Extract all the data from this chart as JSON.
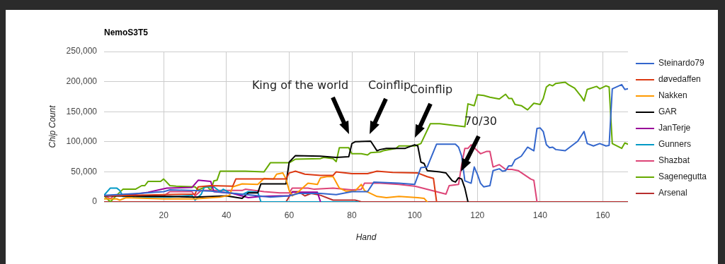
{
  "chart_data": {
    "type": "line",
    "title": "NemoS3T5",
    "xlabel": "Hand",
    "ylabel": "Chip Count",
    "xlim": [
      1,
      168
    ],
    "xticks": [
      20,
      40,
      60,
      80,
      100,
      120,
      140,
      160
    ],
    "ylim": [
      0,
      250000
    ],
    "yticks": [
      {
        "value": 0,
        "label": "0"
      },
      {
        "value": 50000,
        "label": "50,000"
      },
      {
        "value": 100000,
        "label": "100,000"
      },
      {
        "value": 150000,
        "label": "150,000"
      },
      {
        "value": 200000,
        "label": "200,000"
      },
      {
        "value": 250000,
        "label": "250,000"
      }
    ],
    "grid": true,
    "legend": "right",
    "marker": "none",
    "line_style": "solid",
    "annotations": [
      "King of the world",
      "Coinflip",
      "Coinflip",
      "70/30"
    ],
    "series": [
      {
        "name": "Steinardo79",
        "color": "#3366cc",
        "x": [
          1,
          12,
          20,
          22,
          35,
          45,
          54,
          60,
          63,
          70,
          75,
          80,
          85,
          87,
          95,
          100,
          102,
          104,
          107,
          113,
          114,
          115,
          116,
          118,
          119,
          120,
          121,
          122,
          124,
          125,
          127,
          128,
          129,
          130,
          131,
          132,
          134,
          136,
          138,
          139,
          140,
          141,
          142,
          143,
          144,
          145,
          148,
          150,
          152,
          154,
          155,
          157,
          159,
          161,
          162,
          163,
          166,
          167,
          168
        ],
        "values": [
          11000,
          14000,
          17000,
          20000,
          18000,
          13000,
          8000,
          10000,
          14000,
          14000,
          12000,
          17000,
          17000,
          33000,
          31000,
          29000,
          57000,
          58000,
          96000,
          96000,
          91000,
          76000,
          35000,
          31000,
          58000,
          46000,
          31000,
          25000,
          27000,
          52000,
          55000,
          51000,
          52000,
          60000,
          60000,
          70000,
          76000,
          91000,
          85000,
          122000,
          123000,
          117000,
          95000,
          90000,
          91000,
          87000,
          85000,
          93000,
          101000,
          117000,
          97000,
          93000,
          97000,
          93000,
          94000,
          188000,
          195000,
          187000,
          188000
        ]
      },
      {
        "name": "døvedaffen",
        "color": "#dc3912",
        "x": [
          1,
          20,
          30,
          31,
          35,
          42,
          43,
          59,
          60,
          62,
          65,
          70,
          74,
          75,
          80,
          85,
          88,
          93,
          101,
          104,
          106,
          107
        ],
        "values": [
          10000,
          12000,
          13000,
          25000,
          27000,
          26000,
          38000,
          38000,
          48000,
          51000,
          46000,
          44000,
          44000,
          50000,
          47000,
          47000,
          51000,
          49000,
          48000,
          42000,
          39000,
          0
        ]
      },
      {
        "name": "Nakken",
        "color": "#ff9900",
        "x": [
          1,
          5,
          6,
          8,
          20,
          30,
          38,
          41,
          42,
          45,
          50,
          52,
          55,
          56,
          58,
          59,
          60,
          61,
          63,
          66,
          69,
          70,
          72,
          74,
          76,
          78,
          81,
          83,
          84,
          88,
          91,
          95,
          101,
          103,
          104
        ],
        "values": [
          5000,
          5000,
          3000,
          7000,
          5000,
          5000,
          8000,
          11000,
          25000,
          30000,
          29000,
          39000,
          38000,
          46000,
          48000,
          38000,
          19000,
          10000,
          17000,
          31000,
          29000,
          40000,
          42000,
          42000,
          23000,
          18000,
          18000,
          29000,
          19000,
          9000,
          7000,
          9000,
          7000,
          6000,
          0
        ]
      },
      {
        "name": "GAR",
        "color": "#000000",
        "x": [
          1,
          22,
          30,
          40,
          45,
          47,
          50,
          51,
          59,
          60,
          62,
          70,
          75,
          79,
          80,
          81,
          86,
          88,
          89,
          91,
          97,
          100,
          101,
          102,
          103,
          104,
          108,
          110,
          112,
          113,
          114,
          115,
          116,
          117
        ],
        "values": [
          10000,
          9000,
          8000,
          10000,
          6000,
          15000,
          15000,
          30000,
          30000,
          66000,
          77000,
          76000,
          74000,
          75000,
          97000,
          100000,
          101000,
          85000,
          87000,
          89000,
          89000,
          95000,
          93000,
          66000,
          64000,
          52000,
          50000,
          48000,
          35000,
          33000,
          40000,
          38000,
          23000,
          0
        ]
      },
      {
        "name": "JanTerje",
        "color": "#990099",
        "x": [
          1,
          11,
          15,
          21,
          29,
          31,
          35,
          36,
          42,
          47,
          51,
          57,
          60,
          61,
          69,
          70
        ],
        "values": [
          10000,
          13000,
          16000,
          23000,
          24000,
          36000,
          34000,
          17000,
          14000,
          7000,
          9000,
          10000,
          10000,
          16000,
          16000,
          0
        ]
      },
      {
        "name": "Gunners",
        "color": "#0099c6",
        "x": [
          1,
          3,
          5,
          6,
          7,
          10,
          11,
          19,
          22,
          29,
          30,
          32,
          33,
          36,
          38,
          39,
          41,
          45,
          47,
          50,
          51,
          82
        ],
        "values": [
          11000,
          23000,
          23000,
          19000,
          9000,
          9000,
          7000,
          8000,
          8000,
          11000,
          3000,
          13000,
          25000,
          25000,
          17000,
          21000,
          15000,
          12000,
          17000,
          16000,
          0,
          0
        ]
      },
      {
        "name": "Shazbat",
        "color": "#dd4477",
        "x": [
          1,
          3,
          4,
          10,
          12,
          16,
          20,
          22,
          29,
          30,
          32,
          45,
          46,
          52,
          57,
          60,
          61,
          66,
          68,
          74,
          80,
          83,
          84,
          89,
          95,
          100,
          101,
          110,
          111,
          114,
          115,
          116,
          117,
          118,
          121,
          123,
          124,
          125,
          127,
          129,
          131,
          133,
          137,
          138,
          139
        ],
        "values": [
          11000,
          5000,
          10000,
          13000,
          8000,
          8000,
          10000,
          17000,
          17000,
          10000,
          19000,
          19000,
          21000,
          17000,
          15000,
          15000,
          23000,
          23000,
          21000,
          23000,
          20000,
          21000,
          31000,
          31000,
          29000,
          26000,
          25000,
          13000,
          27000,
          29000,
          62000,
          89000,
          89000,
          95000,
          80000,
          84000,
          84000,
          58000,
          62000,
          54000,
          54000,
          52000,
          38000,
          36000,
          0
        ]
      },
      {
        "name": "Sagenegutta",
        "color": "#66aa00",
        "x": [
          1,
          3,
          5,
          7,
          11,
          13,
          14,
          15,
          19,
          20,
          22,
          24,
          30,
          31,
          33,
          34,
          35,
          36,
          37,
          38,
          46,
          52,
          54,
          60,
          62,
          70,
          71,
          74,
          75,
          76,
          79,
          80,
          83,
          85,
          86,
          89,
          90,
          94,
          95,
          100,
          102,
          105,
          108,
          116,
          117,
          119,
          120,
          122,
          124,
          127,
          129,
          130,
          131,
          132,
          134,
          136,
          138,
          140,
          141,
          142,
          143,
          144,
          145,
          148,
          149,
          151,
          153,
          154,
          155,
          158,
          159,
          161,
          162,
          163,
          166,
          167,
          168
        ],
        "values": [
          10000,
          0,
          11000,
          21000,
          21000,
          27000,
          27000,
          34000,
          34000,
          38000,
          27000,
          26000,
          25000,
          20000,
          24000,
          25000,
          19000,
          35000,
          36000,
          51000,
          51000,
          50000,
          65000,
          65000,
          71000,
          72000,
          74000,
          72000,
          67000,
          90000,
          90000,
          80000,
          80000,
          78000,
          82000,
          83000,
          85000,
          89000,
          93000,
          93000,
          97000,
          130000,
          130000,
          125000,
          163000,
          160000,
          178000,
          177000,
          174000,
          171000,
          179000,
          172000,
          172000,
          162000,
          160000,
          153000,
          164000,
          162000,
          172000,
          191000,
          195000,
          193000,
          197000,
          199000,
          195000,
          189000,
          176000,
          168000,
          187000,
          192000,
          188000,
          193000,
          191000,
          97000,
          89000,
          98000,
          96000
        ]
      },
      {
        "name": "Arsenal",
        "color": "#b82e2e",
        "x": [
          1,
          59,
          61,
          63,
          65,
          67,
          70,
          74,
          81,
          83,
          168
        ],
        "values": [
          0,
          0,
          17000,
          17000,
          10000,
          14000,
          11000,
          3000,
          3000,
          0,
          0
        ]
      }
    ]
  }
}
